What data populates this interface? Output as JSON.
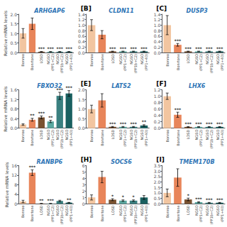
{
  "chart_data": [
    {
      "type": "bar",
      "title": "ARHGAP6",
      "ylabel": "Relative mRNA levels",
      "categories": [
        "Bonroo",
        "Bonrtone",
        "LOSD",
        "NGSO\n(PP1+C2)",
        "NGSO\n(PP1b+C2)",
        "NGSO\n(PP1+40)"
      ],
      "values": [
        1.0,
        1.5,
        0.04,
        0.04,
        0.04,
        0.04
      ],
      "errors": [
        0.25,
        0.3,
        0.01,
        0.01,
        0.01,
        0.01
      ],
      "colors": [
        "#f2c5a0",
        "#e8855a",
        "#7a5230",
        "#5ba8a0",
        "#3a8080",
        "#1a6060"
      ],
      "stars": [
        null,
        null,
        "***",
        "***",
        "***",
        "***"
      ],
      "ylim": [
        0,
        2.0
      ],
      "yticks": [
        {
          "value": 0,
          "label": "0.0"
        },
        0.5,
        {
          "value": 1.0,
          "label": "1.0"
        },
        1.5,
        {
          "value": 2.0,
          "label": "2.0"
        }
      ],
      "grid": false
    },
    {
      "type": "bar",
      "title": "CLDN11",
      "panel_label": "[B]",
      "categories": [
        "Bonroo",
        "Bonrtone",
        "LOSD",
        "NGSO\n(PP1+C2)",
        "NGSO\n(PP1b+C2)",
        "NGSO\n(PP1+40)"
      ],
      "values": [
        1.0,
        0.65,
        0.04,
        0.04,
        0.04,
        0.04
      ],
      "errors": [
        0.2,
        0.15,
        0.01,
        0.01,
        0.01,
        0.01
      ],
      "colors": [
        "#f2c5a0",
        "#e8855a",
        "#7a5230",
        "#5ba8a0",
        "#3a8080",
        "#1a6060"
      ],
      "stars": [
        null,
        null,
        "***",
        "***",
        "***",
        "***"
      ],
      "ylim": [
        0,
        1.4
      ],
      "yticks": [
        {
          "value": 0,
          "label": "0.0"
        },
        0.2,
        0.4,
        0.6,
        0.8,
        {
          "value": 1.0,
          "label": "1.0"
        },
        1.2,
        1.4
      ],
      "grid": false
    },
    {
      "type": "bar",
      "title": "DUSP3",
      "panel_label": "[C]",
      "categories": [
        "Bonroo",
        "Bonrtone",
        "LOSD",
        "NGSO\n(PP1+C2)",
        "NGSO\n(PP1b+C2)",
        "NGSO\n(PP1+40)"
      ],
      "values": [
        1.0,
        0.28,
        0.04,
        0.04,
        0.04,
        0.04
      ],
      "errors": [
        0.35,
        0.05,
        0.01,
        0.01,
        0.01,
        0.01
      ],
      "colors": [
        "#f2c5a0",
        "#e8855a",
        "#7a5230",
        "#5ba8a0",
        "#3a8080",
        "#1a6060"
      ],
      "stars": [
        null,
        "***",
        "***",
        "***",
        "***",
        "***"
      ],
      "ylim": [
        0,
        1.4
      ],
      "yticks": [
        {
          "value": 0,
          "label": "0.0"
        },
        0.2,
        0.4,
        0.6,
        0.8,
        {
          "value": 1.0,
          "label": "1.0"
        },
        1.2,
        1.4
      ],
      "grid": false
    },
    {
      "type": "bar",
      "title": "FBXO32",
      "ylabel": "Relative mRNA levels",
      "categories": [
        "Bonroo",
        "Bonrtone",
        "LOSD",
        "NGSO\n(PP1+C2)",
        "NGSO\n(PP1b+C2)",
        "NGSO\n(PP1+40)"
      ],
      "values": [
        0.15,
        0.35,
        0.45,
        0.28,
        1.35,
        1.45
      ],
      "errors": [
        0.03,
        0.06,
        0.06,
        0.05,
        0.15,
        0.12
      ],
      "colors": [
        "#f2c5a0",
        "#e8855a",
        "#7a5230",
        "#5ba8a0",
        "#3a8080",
        "#1a6060"
      ],
      "stars": [
        null,
        "**",
        "***",
        "**",
        "***",
        "***"
      ],
      "ylim": [
        0,
        1.6
      ],
      "yticks": [
        {
          "value": 0,
          "label": "0.0"
        },
        0.4,
        0.8,
        1.2,
        1.6
      ],
      "grid": false
    },
    {
      "type": "bar",
      "title": "LATS2",
      "panel_label": "[E]",
      "categories": [
        "Bonroo",
        "Bonrtone",
        "LOSD",
        "NGSO\n(PP1+C2)",
        "NGSO\n(PP1b+C2)",
        "NGSO\n(PP1+40)"
      ],
      "values": [
        1.0,
        1.45,
        0.07,
        0.07,
        0.07,
        0.14
      ],
      "errors": [
        0.2,
        0.35,
        0.02,
        0.02,
        0.02,
        0.04
      ],
      "colors": [
        "#f2c5a0",
        "#e8855a",
        "#7a5230",
        "#5ba8a0",
        "#3a8080",
        "#1a6060"
      ],
      "stars": [
        null,
        null,
        "***",
        "***",
        "***",
        "**"
      ],
      "ylim": [
        0,
        2.0
      ],
      "yticks": [
        {
          "value": 0,
          "label": "0.0"
        },
        0.5,
        {
          "value": 1.0,
          "label": "1.0"
        },
        1.5,
        {
          "value": 2.0,
          "label": "2.0"
        }
      ],
      "grid": false
    },
    {
      "type": "bar",
      "title": "LHX6",
      "panel_label": "[F]",
      "categories": [
        "Bonroo",
        "Bonrtone",
        "LOSD",
        "NGSO\n(PP1+C2)",
        "NGSO\n(PP1b+C2)",
        "NGSO\n(PP1+40)"
      ],
      "values": [
        1.0,
        0.42,
        0.04,
        0.04,
        0.04,
        0.04
      ],
      "errors": [
        0.1,
        0.08,
        0.01,
        0.01,
        0.01,
        0.01
      ],
      "colors": [
        "#f2c5a0",
        "#e8855a",
        "#7a5230",
        "#5ba8a0",
        "#3a8080",
        "#1a6060"
      ],
      "stars": [
        null,
        "***",
        "***",
        "***",
        "***",
        "***"
      ],
      "ylim": [
        0,
        1.2
      ],
      "yticks": [
        {
          "value": 0,
          "label": "0.0"
        },
        0.2,
        0.4,
        0.6,
        0.8,
        {
          "value": 1.0,
          "label": "1.0"
        },
        1.2
      ],
      "grid": false
    },
    {
      "type": "bar",
      "title": "RANBP6",
      "ylabel": "Relative mRNA levels",
      "categories": [
        "Bonroo",
        "Bonrtone",
        "LOSD",
        "NGSO\n(PP1+C2)",
        "NGSO\n(PP1b+C2)",
        "NGSO\n(PP1+40)"
      ],
      "values": [
        1.0,
        13.0,
        0.12,
        0.12,
        1.2,
        0.5
      ],
      "errors": [
        0.5,
        1.2,
        0.04,
        0.04,
        0.3,
        0.1
      ],
      "colors": [
        "#f2c5a0",
        "#e8855a",
        "#7a5230",
        "#5ba8a0",
        "#3a8080",
        "#1a6060"
      ],
      "stars": [
        null,
        "***",
        "**",
        "***",
        null,
        "**"
      ],
      "ylim": [
        0,
        16
      ],
      "yticks": [
        0,
        4,
        8,
        12,
        16
      ],
      "grid": false
    },
    {
      "type": "bar",
      "title": "SOCS6",
      "panel_label": "[H]",
      "categories": [
        "Bonroo",
        "Bonrtone",
        "LOSD",
        "NGSO\n(PP1+C2)",
        "NGSO\n(PP1b+C2)",
        "NGSO\n(PP1+40)"
      ],
      "values": [
        1.0,
        4.2,
        0.65,
        0.5,
        0.5,
        1.0
      ],
      "errors": [
        0.4,
        0.9,
        0.15,
        0.12,
        0.12,
        0.3
      ],
      "colors": [
        "#f2c5a0",
        "#e8855a",
        "#7a5230",
        "#5ba8a0",
        "#3a8080",
        "#1a6060"
      ],
      "stars": [
        null,
        null,
        "*",
        "*",
        "*",
        null
      ],
      "ylim": [
        0,
        6
      ],
      "yticks": [
        0,
        1,
        2,
        3,
        4,
        5,
        6
      ],
      "grid": false
    },
    {
      "type": "bar",
      "title": "TMEM170B",
      "panel_label": "[I]",
      "categories": [
        "Bonroo",
        "Bonrtone",
        "LOSD",
        "NGSO\n(PP1+C2)",
        "NGSO\n(PP1b+C2)",
        "NGSO\n(PP1+40)"
      ],
      "values": [
        1.0,
        2.4,
        0.4,
        0.15,
        0.1,
        0.1
      ],
      "errors": [
        0.35,
        0.8,
        0.12,
        0.05,
        0.03,
        0.03
      ],
      "colors": [
        "#f2c5a0",
        "#e8855a",
        "#7a5230",
        "#5ba8a0",
        "#3a8080",
        "#1a6060"
      ],
      "stars": [
        null,
        null,
        "*",
        "***",
        "***",
        "***"
      ],
      "ylim": [
        0,
        3.5
      ],
      "yticks": [
        {
          "value": 0,
          "label": "0.0"
        },
        0.5,
        {
          "value": 1.0,
          "label": "1.0"
        },
        1.5,
        {
          "value": 2.0,
          "label": "2.0"
        },
        2.5,
        {
          "value": 3.0,
          "label": "3.0"
        },
        3.5
      ],
      "grid": false
    }
  ]
}
